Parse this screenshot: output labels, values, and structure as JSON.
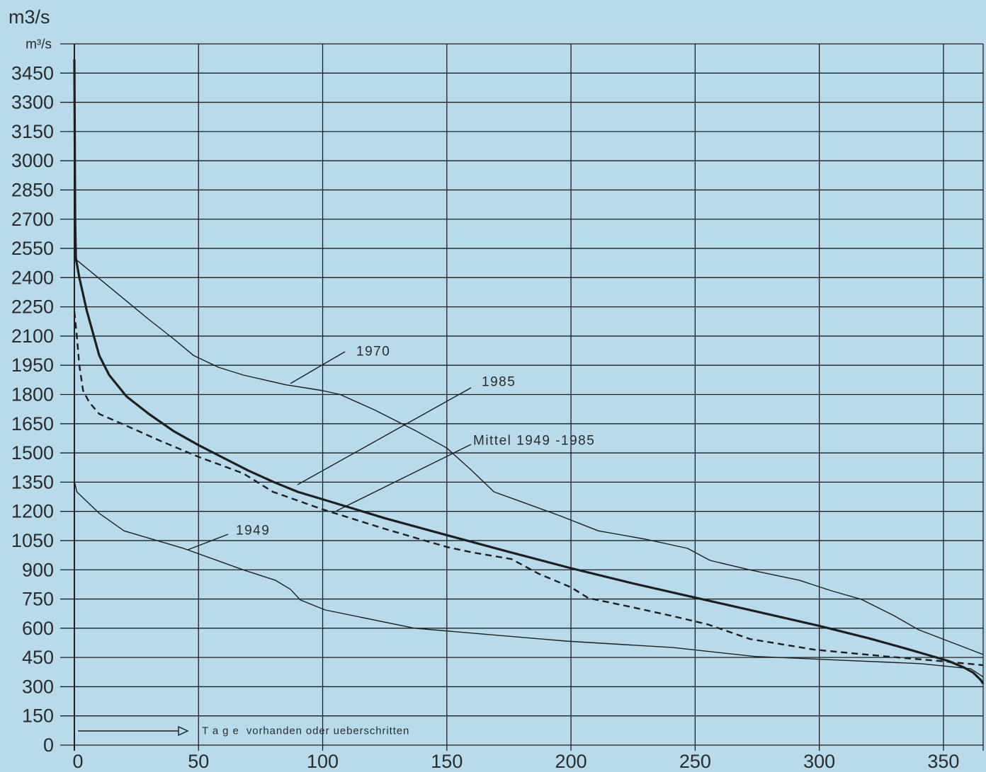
{
  "colors": {
    "background": "#b7dbea",
    "ink": "#1e1e1e"
  },
  "chart_data": {
    "type": "line",
    "ylabel": "m3/s",
    "unit_label": "m³/s",
    "xlabel": "T a g e  vorhanden oder ueberschritten",
    "xlim": [
      0,
      366
    ],
    "ylim": [
      0,
      3600
    ],
    "grid": true,
    "xticks": [
      0,
      50,
      100,
      150,
      200,
      250,
      300,
      350
    ],
    "yticks": [
      0,
      150,
      300,
      450,
      600,
      750,
      900,
      1050,
      1200,
      1350,
      1500,
      1650,
      1800,
      1950,
      2100,
      2250,
      2400,
      2550,
      2700,
      2850,
      3000,
      3150,
      3300,
      3450
    ],
    "series": [
      {
        "name": "1970",
        "x": [
          0,
          10,
          20,
          30,
          40,
          48,
          58,
          68,
          85,
          100,
          107,
          121,
          138,
          150,
          160,
          169,
          181,
          196,
          211,
          230,
          247,
          256,
          272,
          292,
          305,
          317,
          330,
          340,
          355,
          366
        ],
        "y": [
          2500,
          2395,
          2290,
          2185,
          2085,
          2000,
          1940,
          1900,
          1850,
          1820,
          1800,
          1720,
          1610,
          1525,
          1410,
          1300,
          1245,
          1175,
          1100,
          1057,
          1010,
          948,
          900,
          846,
          792,
          748,
          665,
          592,
          519,
          465
        ]
      },
      {
        "name": "1985",
        "x": [
          0,
          0.3,
          0.6,
          2,
          5,
          10,
          14,
          21,
          30,
          40,
          50,
          60,
          70,
          80,
          90,
          100,
          125,
          150,
          175,
          200,
          225,
          250,
          275,
          300,
          320,
          335,
          345,
          352,
          358,
          362,
          365,
          366
        ],
        "y": [
          3520,
          2700,
          2500,
          2400,
          2230,
          2000,
          1900,
          1790,
          1700,
          1612,
          1540,
          1475,
          1410,
          1352,
          1300,
          1262,
          1165,
          1078,
          992,
          908,
          830,
          757,
          685,
          612,
          548,
          495,
          458,
          432,
          400,
          372,
          335,
          315
        ]
      },
      {
        "name": "Mittel 1949 -1985",
        "x": [
          0,
          1,
          2,
          3.5,
          6,
          10,
          20,
          35,
          50,
          68,
          80,
          100,
          125,
          150,
          160,
          176,
          187,
          200,
          207,
          224,
          240,
          255,
          272,
          298,
          327,
          350,
          366
        ],
        "y": [
          2225,
          2100,
          1950,
          1820,
          1760,
          1700,
          1645,
          1560,
          1480,
          1395,
          1300,
          1210,
          1110,
          1017,
          990,
          955,
          880,
          810,
          755,
          710,
          665,
          620,
          545,
          490,
          455,
          430,
          410
        ]
      },
      {
        "name": "1949",
        "x": [
          0,
          1,
          10,
          20,
          44,
          68,
          81,
          87,
          91,
          101,
          137,
          198,
          241,
          274,
          341,
          361,
          366
        ],
        "y": [
          1355,
          1300,
          1190,
          1100,
          1010,
          900,
          846,
          800,
          745,
          694,
          600,
          534,
          501,
          455,
          418,
          392,
          350
        ]
      }
    ]
  }
}
